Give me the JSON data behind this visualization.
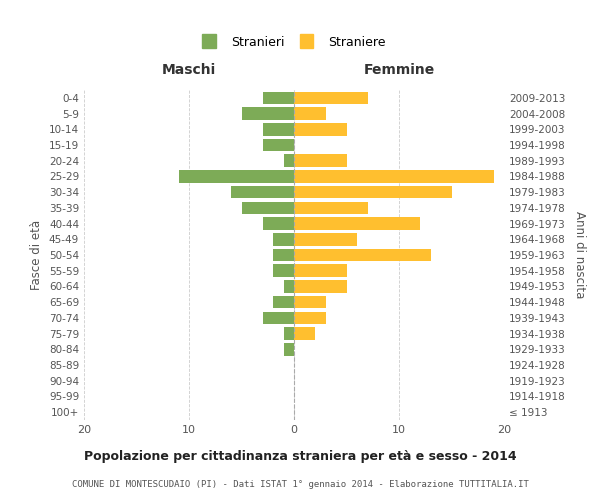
{
  "age_groups": [
    "100+",
    "95-99",
    "90-94",
    "85-89",
    "80-84",
    "75-79",
    "70-74",
    "65-69",
    "60-64",
    "55-59",
    "50-54",
    "45-49",
    "40-44",
    "35-39",
    "30-34",
    "25-29",
    "20-24",
    "15-19",
    "10-14",
    "5-9",
    "0-4"
  ],
  "birth_years": [
    "≤ 1913",
    "1914-1918",
    "1919-1923",
    "1924-1928",
    "1929-1933",
    "1934-1938",
    "1939-1943",
    "1944-1948",
    "1949-1953",
    "1954-1958",
    "1959-1963",
    "1964-1968",
    "1969-1973",
    "1974-1978",
    "1979-1983",
    "1984-1988",
    "1989-1993",
    "1994-1998",
    "1999-2003",
    "2004-2008",
    "2009-2013"
  ],
  "males": [
    0,
    0,
    0,
    0,
    1,
    1,
    3,
    2,
    1,
    2,
    2,
    2,
    3,
    5,
    6,
    11,
    1,
    3,
    3,
    5,
    3
  ],
  "females": [
    0,
    0,
    0,
    0,
    0,
    2,
    3,
    3,
    5,
    5,
    13,
    6,
    12,
    7,
    15,
    19,
    5,
    0,
    5,
    3,
    7
  ],
  "male_color": "#7dab57",
  "female_color": "#ffbf2f",
  "background_color": "#ffffff",
  "grid_color": "#cccccc",
  "title": "Popolazione per cittadinanza straniera per età e sesso - 2014",
  "subtitle": "COMUNE DI MONTESCUDAIO (PI) - Dati ISTAT 1° gennaio 2014 - Elaborazione TUTTITALIA.IT",
  "xlabel_left": "Maschi",
  "xlabel_right": "Femmine",
  "ylabel_left": "Fasce di età",
  "ylabel_right": "Anni di nascita",
  "xlim": 20,
  "legend_male": "Stranieri",
  "legend_female": "Straniere",
  "bar_height": 0.8
}
